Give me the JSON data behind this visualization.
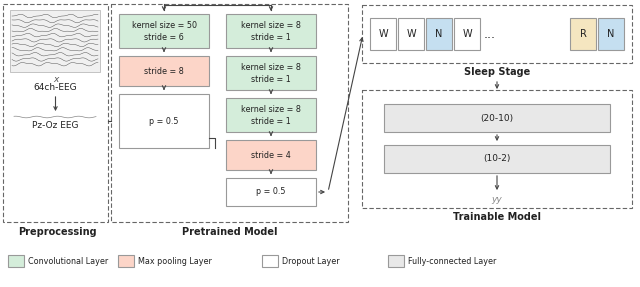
{
  "fig_width": 6.4,
  "fig_height": 2.87,
  "dpi": 100,
  "bg_color": "#ffffff",
  "colors": {
    "conv_fill": "#d4edda",
    "conv_edge": "#999999",
    "pool_fill": "#fcd5c8",
    "pool_edge": "#999999",
    "dropout_fill": "#ffffff",
    "dropout_edge": "#999999",
    "fc_fill": "#e8e8e8",
    "fc_edge": "#999999",
    "dashed_box": "#666666",
    "arrow": "#444444"
  },
  "legend": [
    {
      "label": "Convolutional Layer",
      "color": "#d4edda"
    },
    {
      "label": "Max pooling Layer",
      "color": "#fcd5c8"
    },
    {
      "label": "Dropout Layer",
      "color": "#ffffff"
    },
    {
      "label": "Fully-connected Layer",
      "color": "#e8e8e8"
    }
  ]
}
